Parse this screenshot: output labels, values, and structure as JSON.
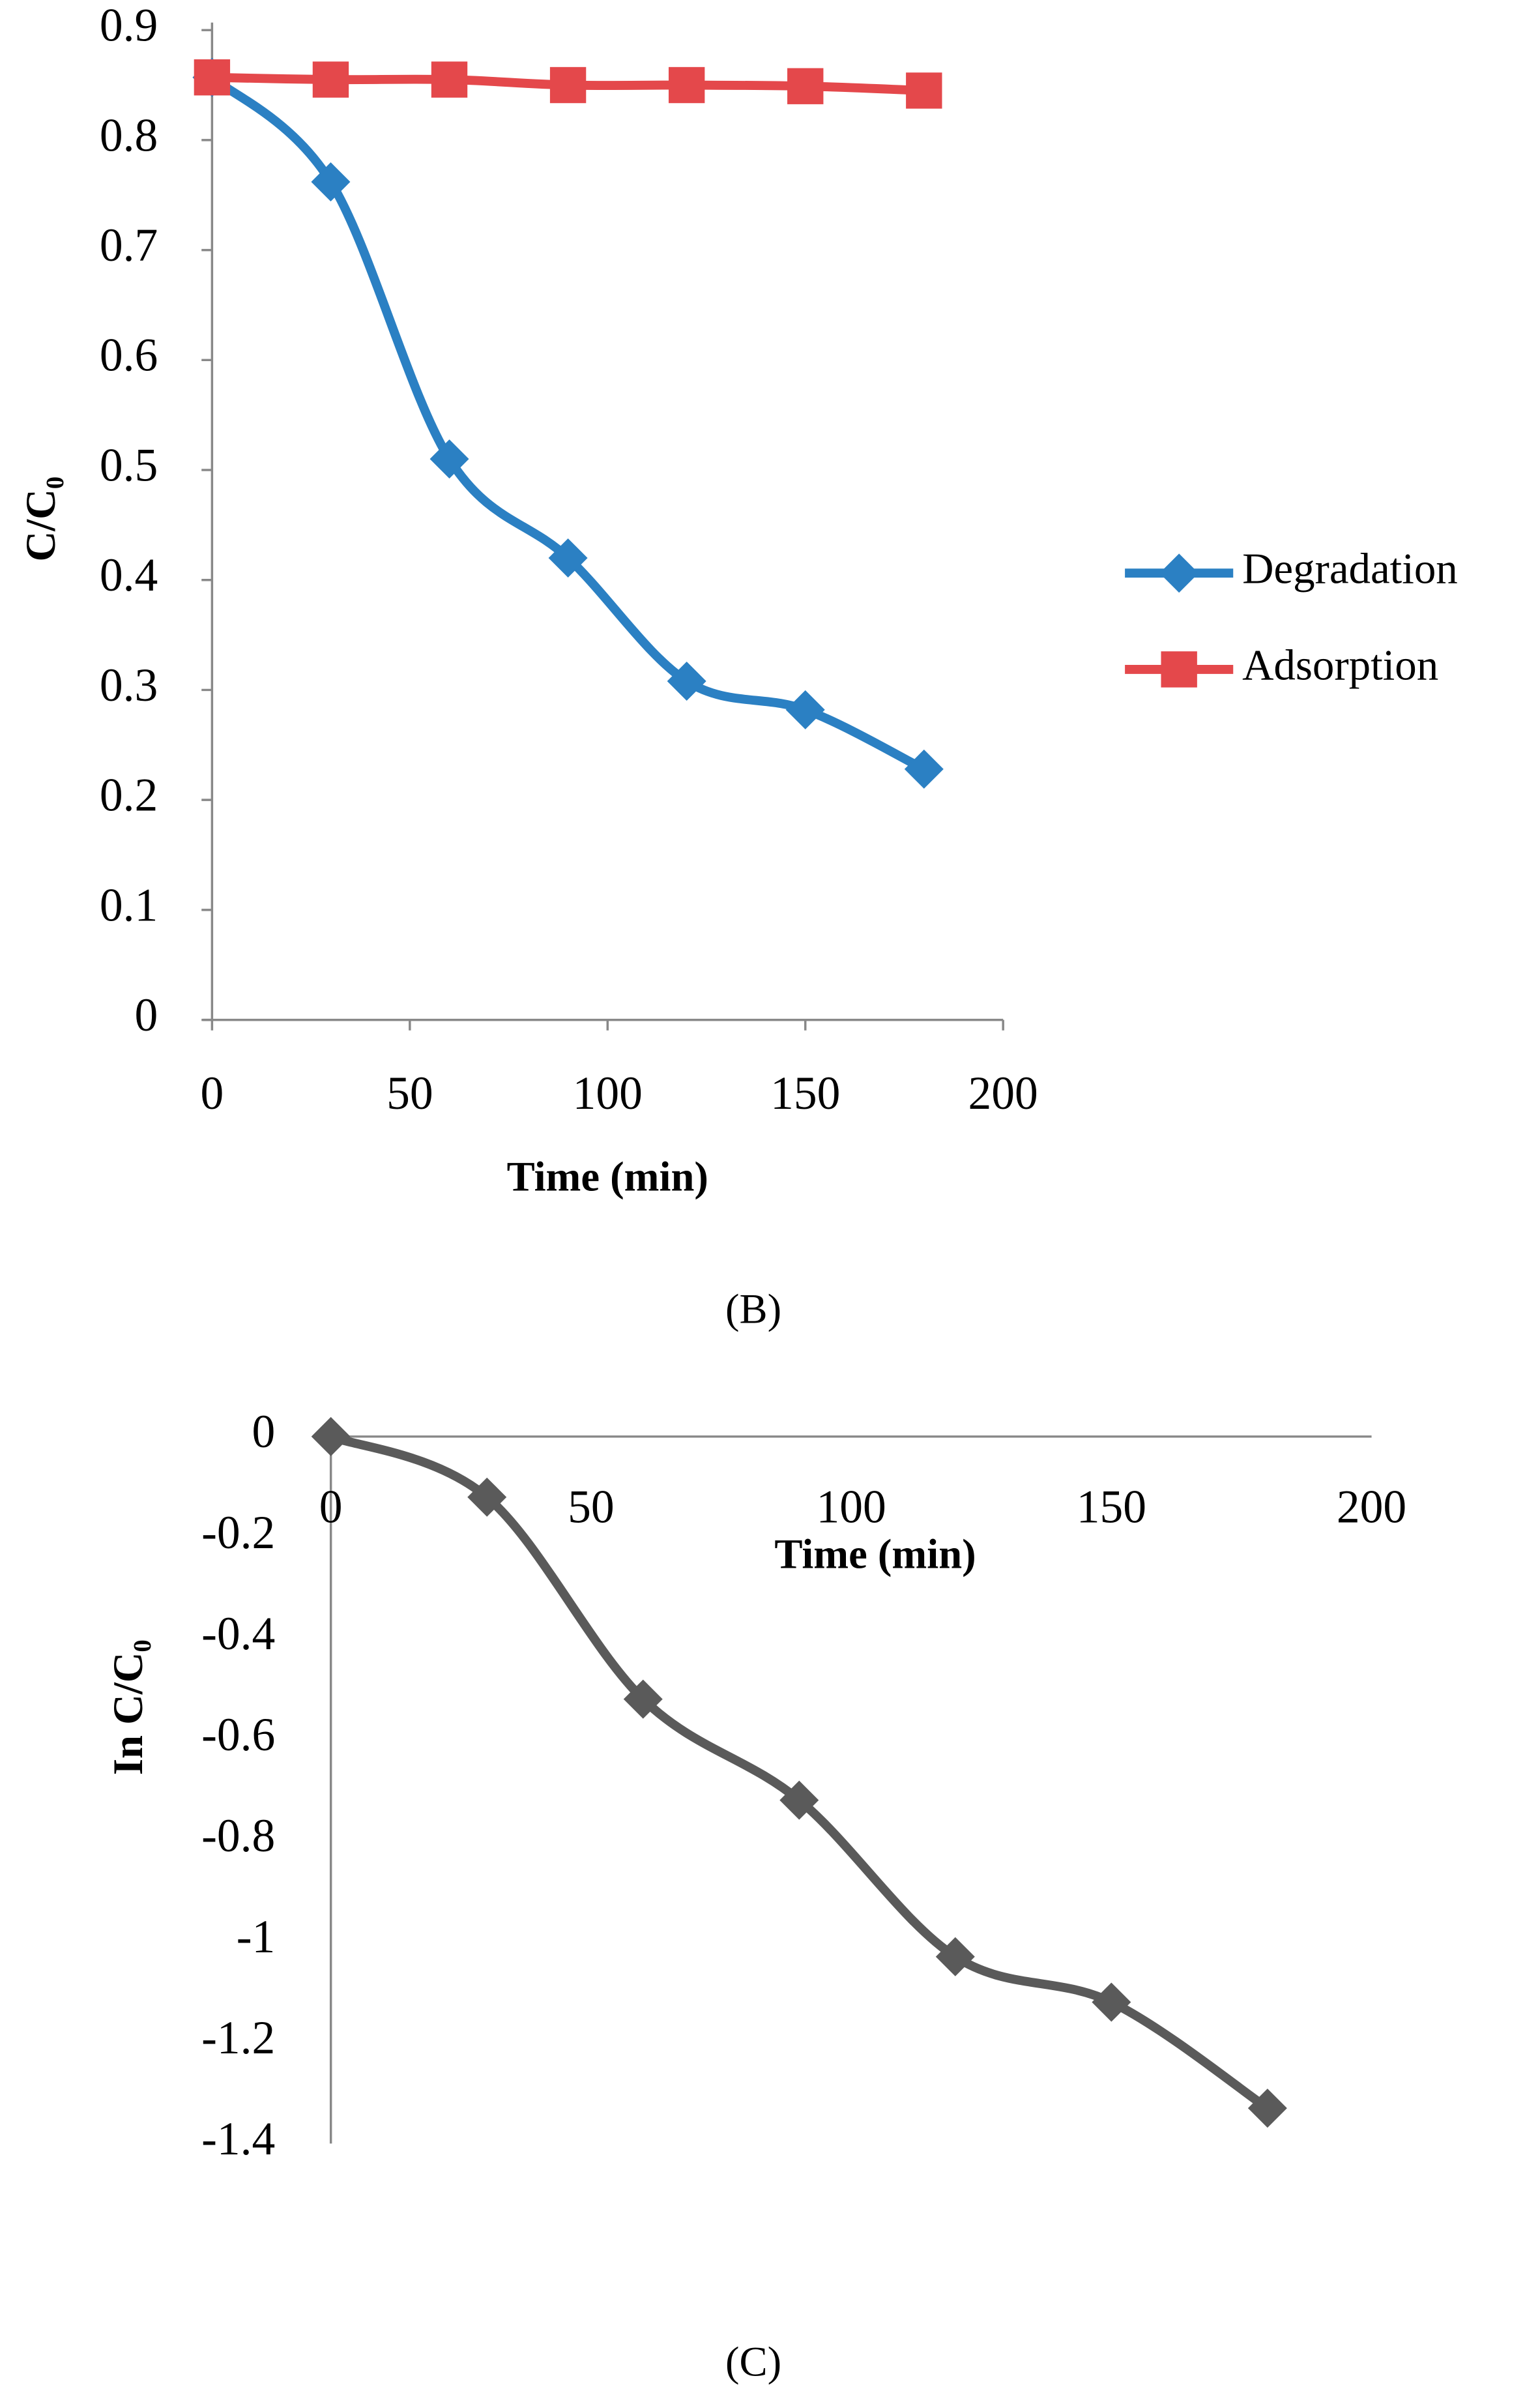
{
  "chart_data": [
    {
      "type": "line",
      "caption": "(B)",
      "x_label": "Time (min)",
      "y_label": "C/C₀",
      "x": [
        0,
        30,
        60,
        90,
        120,
        150,
        180
      ],
      "series": [
        {
          "name": "Degradation",
          "color": "#2b80c3",
          "marker": "diamond",
          "values": [
            0.857,
            0.762,
            0.51,
            0.42,
            0.308,
            0.282,
            0.228
          ]
        },
        {
          "name": "Adsorption",
          "color": "#e4484b",
          "marker": "square",
          "values": [
            0.857,
            0.855,
            0.855,
            0.85,
            0.85,
            0.849,
            0.845
          ]
        }
      ],
      "xlim": [
        0,
        200
      ],
      "xticks": [
        0,
        50,
        100,
        150,
        200
      ],
      "ylim": [
        0,
        0.9
      ],
      "yticks": [
        0,
        0.1,
        0.2,
        0.3,
        0.4,
        0.5,
        0.6,
        0.7,
        0.8,
        0.9
      ],
      "legend": "right"
    },
    {
      "type": "line",
      "caption": "(C)",
      "x_label": "Time (min)",
      "y_label": "In C/C₀",
      "x": [
        0,
        30,
        60,
        90,
        120,
        150,
        180
      ],
      "series": [
        {
          "color": "#5a5a5a",
          "marker": "diamond",
          "values": [
            0,
            -0.12,
            -0.52,
            -0.72,
            -1.03,
            -1.12,
            -1.33
          ]
        }
      ],
      "xlim": [
        0,
        200
      ],
      "xticks": [
        0,
        50,
        100,
        150,
        200
      ],
      "ylim": [
        -1.4,
        0
      ],
      "yticks": [
        0,
        -0.2,
        -0.4,
        -0.6,
        -0.8,
        -1,
        -1.2,
        -1.4
      ]
    }
  ]
}
